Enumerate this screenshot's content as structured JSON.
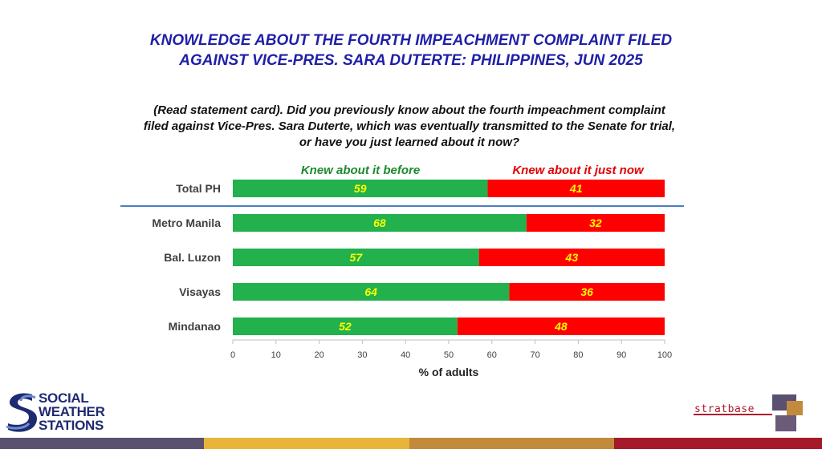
{
  "title_line1": "KNOWLEDGE ABOUT THE FOURTH IMPEACHMENT COMPLAINT FILED",
  "title_line2": "AGAINST VICE-PRES. SARA DUTERTE: PHILIPPINES, JUN 2025",
  "question_line1": "(Read statement card). Did you previously know about the fourth impeachment complaint",
  "question_line2": "filed against Vice-Pres. Sara Duterte, which was eventually transmitted to the Senate for trial,",
  "question_line3": "or have you just learned about it now?",
  "logos": {
    "sws_line1": "SOCIAL",
    "sws_line2": "WEATHER",
    "sws_line3": "STATIONS",
    "stratbase_name": "stratbase"
  },
  "colors": {
    "knew_before": "#22b14c",
    "just_now": "#ff0000",
    "value_label": "#ffff00",
    "title": "#1f1fa8",
    "divider": "#4a7fc1",
    "footer": [
      "#5a5170",
      "#e8b43a",
      "#c18a3c",
      "#a5192a"
    ]
  },
  "chart_data": {
    "type": "bar",
    "orientation": "horizontal",
    "stacked": true,
    "categories": [
      "Total PH",
      "Metro Manila",
      "Bal. Luzon",
      "Visayas",
      "Mindanao"
    ],
    "series": [
      {
        "name": "Knew about it before",
        "values": [
          59,
          68,
          57,
          64,
          52
        ]
      },
      {
        "name": "Knew about it just now",
        "values": [
          41,
          32,
          43,
          36,
          48
        ]
      }
    ],
    "xlabel": "% of adults",
    "ylabel": "",
    "xlim": [
      0,
      100
    ],
    "xticks": [
      "0",
      "10",
      "20",
      "30",
      "40",
      "50",
      "60",
      "70",
      "80",
      "90",
      "100"
    ],
    "legend_position": "top",
    "grid": false
  }
}
